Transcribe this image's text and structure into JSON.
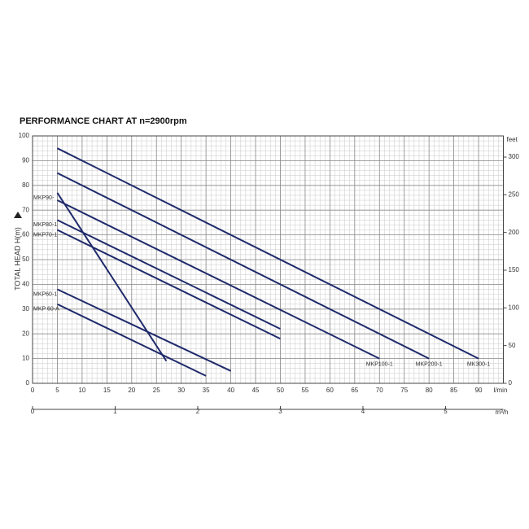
{
  "chart_data": {
    "type": "line",
    "title": "PERFORMANCE CHART AT n=2900rpm",
    "y_label": "TOTAL HEAD H(m)",
    "x_unit": "l/min",
    "x2_unit": "m³/h",
    "y2_unit": "feet",
    "xlim": [
      0,
      95
    ],
    "xticks": [
      0,
      5,
      10,
      15,
      20,
      25,
      30,
      35,
      40,
      45,
      50,
      55,
      60,
      65,
      70,
      75,
      80,
      85,
      90
    ],
    "x2lim": [
      0,
      5.7
    ],
    "x2ticks": [
      0,
      1,
      2,
      3,
      4,
      5
    ],
    "ylim": [
      0,
      100
    ],
    "yticks": [
      0,
      10,
      20,
      30,
      40,
      50,
      60,
      70,
      80,
      90,
      100
    ],
    "y2lim": [
      0,
      328.08
    ],
    "y2ticks": [
      0,
      50,
      100,
      150,
      200,
      250,
      300
    ],
    "grid": true,
    "series": [
      {
        "name": "MKP90-",
        "color": "#1f2a6b",
        "x": [
          5,
          27
        ],
        "values": [
          77,
          9
        ]
      },
      {
        "name": "MKP80-1",
        "color": "#1f2a6b",
        "x": [
          5,
          50
        ],
        "values": [
          66,
          22
        ]
      },
      {
        "name": "MKP70-1",
        "color": "#1f2a6b",
        "x": [
          5,
          50
        ],
        "values": [
          62,
          18
        ]
      },
      {
        "name": "MKP60-1",
        "color": "#1f2a6b",
        "x": [
          5,
          40
        ],
        "values": [
          38,
          5
        ]
      },
      {
        "name": "MKP 60-A",
        "color": "#1f2a6b",
        "x": [
          5,
          35
        ],
        "values": [
          32,
          3
        ]
      },
      {
        "name": "MKP100-1",
        "color": "#1f2a6b",
        "x": [
          5,
          70
        ],
        "values": [
          74,
          10
        ]
      },
      {
        "name": "MKP200-1",
        "color": "#1f2a6b",
        "x": [
          5,
          80
        ],
        "values": [
          85,
          10
        ]
      },
      {
        "name": "MK300-1",
        "color": "#1f2a6b",
        "x": [
          5,
          90
        ],
        "values": [
          95,
          10
        ]
      }
    ]
  }
}
